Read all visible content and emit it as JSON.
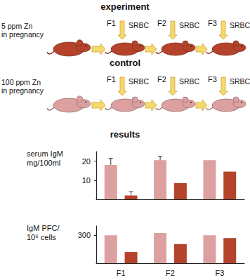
{
  "diagram": {
    "rows": [
      {
        "title": "experiment",
        "treatment": [
          "5 ppm Zn",
          "in pregnancy"
        ],
        "generations": [
          "F1",
          "F2",
          "F3"
        ],
        "stimulus": "SRBC",
        "color": "#b5432b"
      },
      {
        "title": "control",
        "treatment": [
          "100 ppm Zn",
          "in pregnancy"
        ],
        "generations": [
          "F1",
          "F2",
          "F3"
        ],
        "stimulus": "SRBC",
        "color": "#dda0a0"
      }
    ],
    "results_title": "results"
  },
  "chart_data": [
    {
      "type": "bar",
      "y_label": "serum IgM\nmg/100ml",
      "categories": [
        "F1",
        "F2",
        "F3"
      ],
      "series": [
        {
          "name": "control",
          "color": "#dda0a0",
          "values": [
            18,
            20.5,
            20.5
          ],
          "errors": [
            3.5,
            2,
            null
          ]
        },
        {
          "name": "experiment",
          "color": "#b5432b",
          "values": [
            2,
            8.5,
            14.5
          ],
          "errors": [
            2,
            null,
            null
          ]
        }
      ],
      "ylim": [
        0,
        25
      ],
      "yticks": [
        10,
        20
      ],
      "grid": false,
      "tick_labels": "y"
    },
    {
      "type": "bar",
      "y_label": "IgM PFC/\n10⁶ cells",
      "categories": [
        "F1",
        "F2",
        "F3"
      ],
      "series": [
        {
          "name": "control",
          "color": "#dda0a0",
          "values": [
            300,
            325,
            300
          ]
        },
        {
          "name": "experiment",
          "color": "#b5432b",
          "values": [
            120,
            205,
            270
          ]
        }
      ],
      "ylim": [
        0,
        400
      ],
      "yticks": [
        300
      ],
      "grid": false,
      "tick_labels": true
    }
  ]
}
